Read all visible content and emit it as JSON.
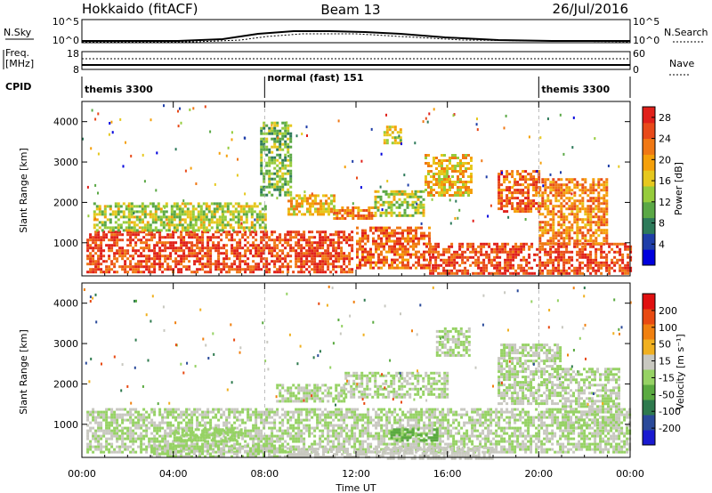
{
  "header": {
    "title_left": "Hokkaido (fitACF)",
    "title_center": "Beam 13",
    "title_right": "26/Jul/2016"
  },
  "top_panels": {
    "nsky_label": "N.Sky",
    "nsky_ticks": [
      "10^5",
      "10^0"
    ],
    "nsearch_label": "N.Search",
    "nsearch_ticks": [
      "10^5",
      "10^0"
    ],
    "freq_label_1": "Freq.",
    "freq_label_2": "[MHz]",
    "freq_ticks": [
      "18",
      "8"
    ],
    "nave_label": "Nave",
    "nave_ticks": [
      "60",
      "0"
    ],
    "cpid_label": "CPID",
    "cpid_modes": [
      {
        "text": "themis 3300",
        "start_hour": 0
      },
      {
        "text": "normal (fast) 151",
        "start_hour": 8
      },
      {
        "text": "themis 3300",
        "start_hour": 20
      }
    ]
  },
  "chart_data": [
    {
      "type": "heatmap",
      "title": "",
      "xlabel": "Time UT",
      "ylabel": "Slant Range [km]",
      "xlim_hours": [
        0,
        24
      ],
      "xticks": [
        "00:00",
        "04:00",
        "08:00",
        "12:00",
        "16:00",
        "20:00",
        "00:00"
      ],
      "ylim": [
        180,
        4500
      ],
      "yticks": [
        1000,
        2000,
        3000,
        4000
      ],
      "colorbar": {
        "label": "Power [dB]",
        "ticks": [
          4,
          8,
          12,
          16,
          20,
          24,
          28
        ],
        "range": [
          0,
          30
        ],
        "colors": [
          "#0000dd",
          "#1f3ea8",
          "#2d7a5a",
          "#5aa845",
          "#96cc3c",
          "#e6c81e",
          "#f5a00a",
          "#f07814",
          "#e84a1a",
          "#e0201a"
        ]
      },
      "regions": [
        {
          "t0": 0.2,
          "t1": 11.8,
          "r0": 300,
          "r1": 1300,
          "level": 26
        },
        {
          "t0": 12.0,
          "t1": 15.2,
          "r0": 400,
          "r1": 1400,
          "level": 24
        },
        {
          "t0": 15.2,
          "t1": 24.0,
          "r0": 250,
          "r1": 1000,
          "level": 26
        },
        {
          "t0": 0.5,
          "t1": 8.0,
          "r0": 1300,
          "r1": 2000,
          "level": 14
        },
        {
          "t0": 9.0,
          "t1": 11.0,
          "r0": 1700,
          "r1": 2200,
          "level": 18
        },
        {
          "t0": 11.0,
          "t1": 12.8,
          "r0": 1600,
          "r1": 1900,
          "level": 22
        },
        {
          "t0": 12.8,
          "t1": 15.0,
          "r0": 1700,
          "r1": 2300,
          "level": 14
        },
        {
          "t0": 15.0,
          "t1": 17.0,
          "r0": 2200,
          "r1": 3200,
          "level": 18
        },
        {
          "t0": 18.2,
          "t1": 20.0,
          "r0": 1800,
          "r1": 2800,
          "level": 24
        },
        {
          "t0": 20.0,
          "t1": 23.0,
          "r0": 1000,
          "r1": 2600,
          "level": 22
        },
        {
          "t0": 7.8,
          "t1": 9.2,
          "r0": 2200,
          "r1": 4000,
          "level": 12
        },
        {
          "t0": 13.2,
          "t1": 14.0,
          "r0": 3500,
          "r1": 3900,
          "level": 16
        }
      ]
    },
    {
      "type": "heatmap",
      "title": "",
      "xlabel": "Time UT",
      "ylabel": "Slant Range [km]",
      "xlim_hours": [
        0,
        24
      ],
      "xticks": [
        "00:00",
        "04:00",
        "08:00",
        "12:00",
        "16:00",
        "20:00",
        "00:00"
      ],
      "ylim": [
        180,
        4500
      ],
      "yticks": [
        1000,
        2000,
        3000,
        4000
      ],
      "colorbar": {
        "label": "Velocity [m s⁻¹]",
        "ticks": [
          200,
          100,
          50,
          15,
          -15,
          -50,
          -100,
          -200
        ],
        "range": [
          -250,
          250
        ],
        "colors": [
          "#1a1ad0",
          "#2a4a9a",
          "#2e7a4e",
          "#5aaa40",
          "#96d264",
          "#c8c8c0",
          "#f0b020",
          "#f08010",
          "#e84a12",
          "#e01010"
        ]
      },
      "regions": [
        {
          "t0": 0.2,
          "t1": 24.0,
          "r0": 300,
          "r1": 1400,
          "level": 0
        },
        {
          "t0": 3.0,
          "t1": 9.0,
          "r0": 200,
          "r1": 500,
          "level": 0
        },
        {
          "t0": 9.0,
          "t1": 13.0,
          "r0": 180,
          "r1": 420,
          "level": 30
        },
        {
          "t0": 13.0,
          "t1": 18.0,
          "r0": 180,
          "r1": 450,
          "level": 20
        },
        {
          "t0": 13.5,
          "t1": 15.5,
          "r0": 600,
          "r1": 900,
          "level": -60
        },
        {
          "t0": 8.5,
          "t1": 11.5,
          "r0": 1600,
          "r1": 2000,
          "level": 0
        },
        {
          "t0": 11.5,
          "t1": 16.0,
          "r0": 1700,
          "r1": 2300,
          "level": 0
        },
        {
          "t0": 15.5,
          "t1": 17.0,
          "r0": 2700,
          "r1": 3400,
          "level": 0
        },
        {
          "t0": 18.2,
          "t1": 21.0,
          "r0": 1500,
          "r1": 3000,
          "level": 0
        },
        {
          "t0": 21.0,
          "t1": 23.5,
          "r0": 900,
          "r1": 2400,
          "level": 0
        },
        {
          "t0": 4.0,
          "t1": 7.0,
          "r0": 600,
          "r1": 900,
          "level": -40
        }
      ]
    }
  ]
}
